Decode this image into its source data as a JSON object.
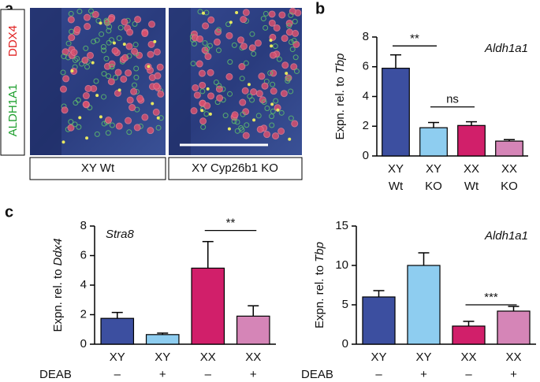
{
  "figure": {
    "panel_labels": [
      "a",
      "b",
      "c"
    ],
    "stains": [
      "DDX4",
      "ALDH1A1"
    ],
    "image_captions": [
      "XY Wt",
      "XY Cyp26b1 KO"
    ]
  },
  "chart_data": [
    {
      "type": "bar",
      "annotation": "Aldh1a1",
      "y_label": [
        "Expn. rel. to",
        "Tbp"
      ],
      "categories": [
        "XY",
        "XY",
        "XX",
        "XX"
      ],
      "sublabels": [
        "Wt",
        "KO",
        "Wt",
        "KO"
      ],
      "values": [
        5.9,
        1.9,
        2.05,
        1.0
      ],
      "errors": [
        0.9,
        0.35,
        0.25,
        0.1
      ],
      "colors": [
        "#3c4fa0",
        "#8ecdf0",
        "#d11f6a",
        "#d585b7"
      ],
      "ylim": [
        0,
        8
      ],
      "yticks": [
        0,
        2,
        4,
        6,
        8
      ],
      "significance": [
        {
          "label": "**",
          "from": 0,
          "to": 1,
          "y": 7.4
        },
        {
          "label": "ns",
          "from": 1,
          "to": 2,
          "y": 3.3
        }
      ]
    },
    {
      "type": "bar",
      "annotation": "Stra8",
      "y_label": [
        "Expn. rel. to",
        "Ddx4"
      ],
      "categories": [
        "XY",
        "XY",
        "XX",
        "XX"
      ],
      "row_label": "DEAB",
      "sublabels": [
        "–",
        "+",
        "–",
        "+"
      ],
      "values": [
        1.75,
        0.65,
        5.15,
        1.9
      ],
      "errors": [
        0.4,
        0.1,
        1.8,
        0.7
      ],
      "colors": [
        "#3c4fa0",
        "#8ecdf0",
        "#d11f6a",
        "#d585b7"
      ],
      "ylim": [
        0,
        8
      ],
      "yticks": [
        0,
        2,
        4,
        6,
        8
      ],
      "significance": [
        {
          "label": "**",
          "from": 2,
          "to": 3,
          "y": 7.7
        }
      ]
    },
    {
      "type": "bar",
      "annotation": "Aldh1a1",
      "y_label": [
        "Expn. rel. to",
        "Tbp"
      ],
      "categories": [
        "XY",
        "XY",
        "XX",
        "XX"
      ],
      "row_label": "DEAB",
      "sublabels": [
        "–",
        "+",
        "–",
        "+"
      ],
      "values": [
        6.0,
        10.0,
        2.3,
        4.2
      ],
      "errors": [
        0.8,
        1.6,
        0.6,
        0.6
      ],
      "colors": [
        "#3c4fa0",
        "#8ecdf0",
        "#d11f6a",
        "#d585b7"
      ],
      "ylim": [
        0,
        15
      ],
      "yticks": [
        0,
        5,
        10,
        15
      ],
      "significance": [
        {
          "label": "***",
          "from": 2,
          "to": 3,
          "y": 5.0
        }
      ]
    }
  ]
}
